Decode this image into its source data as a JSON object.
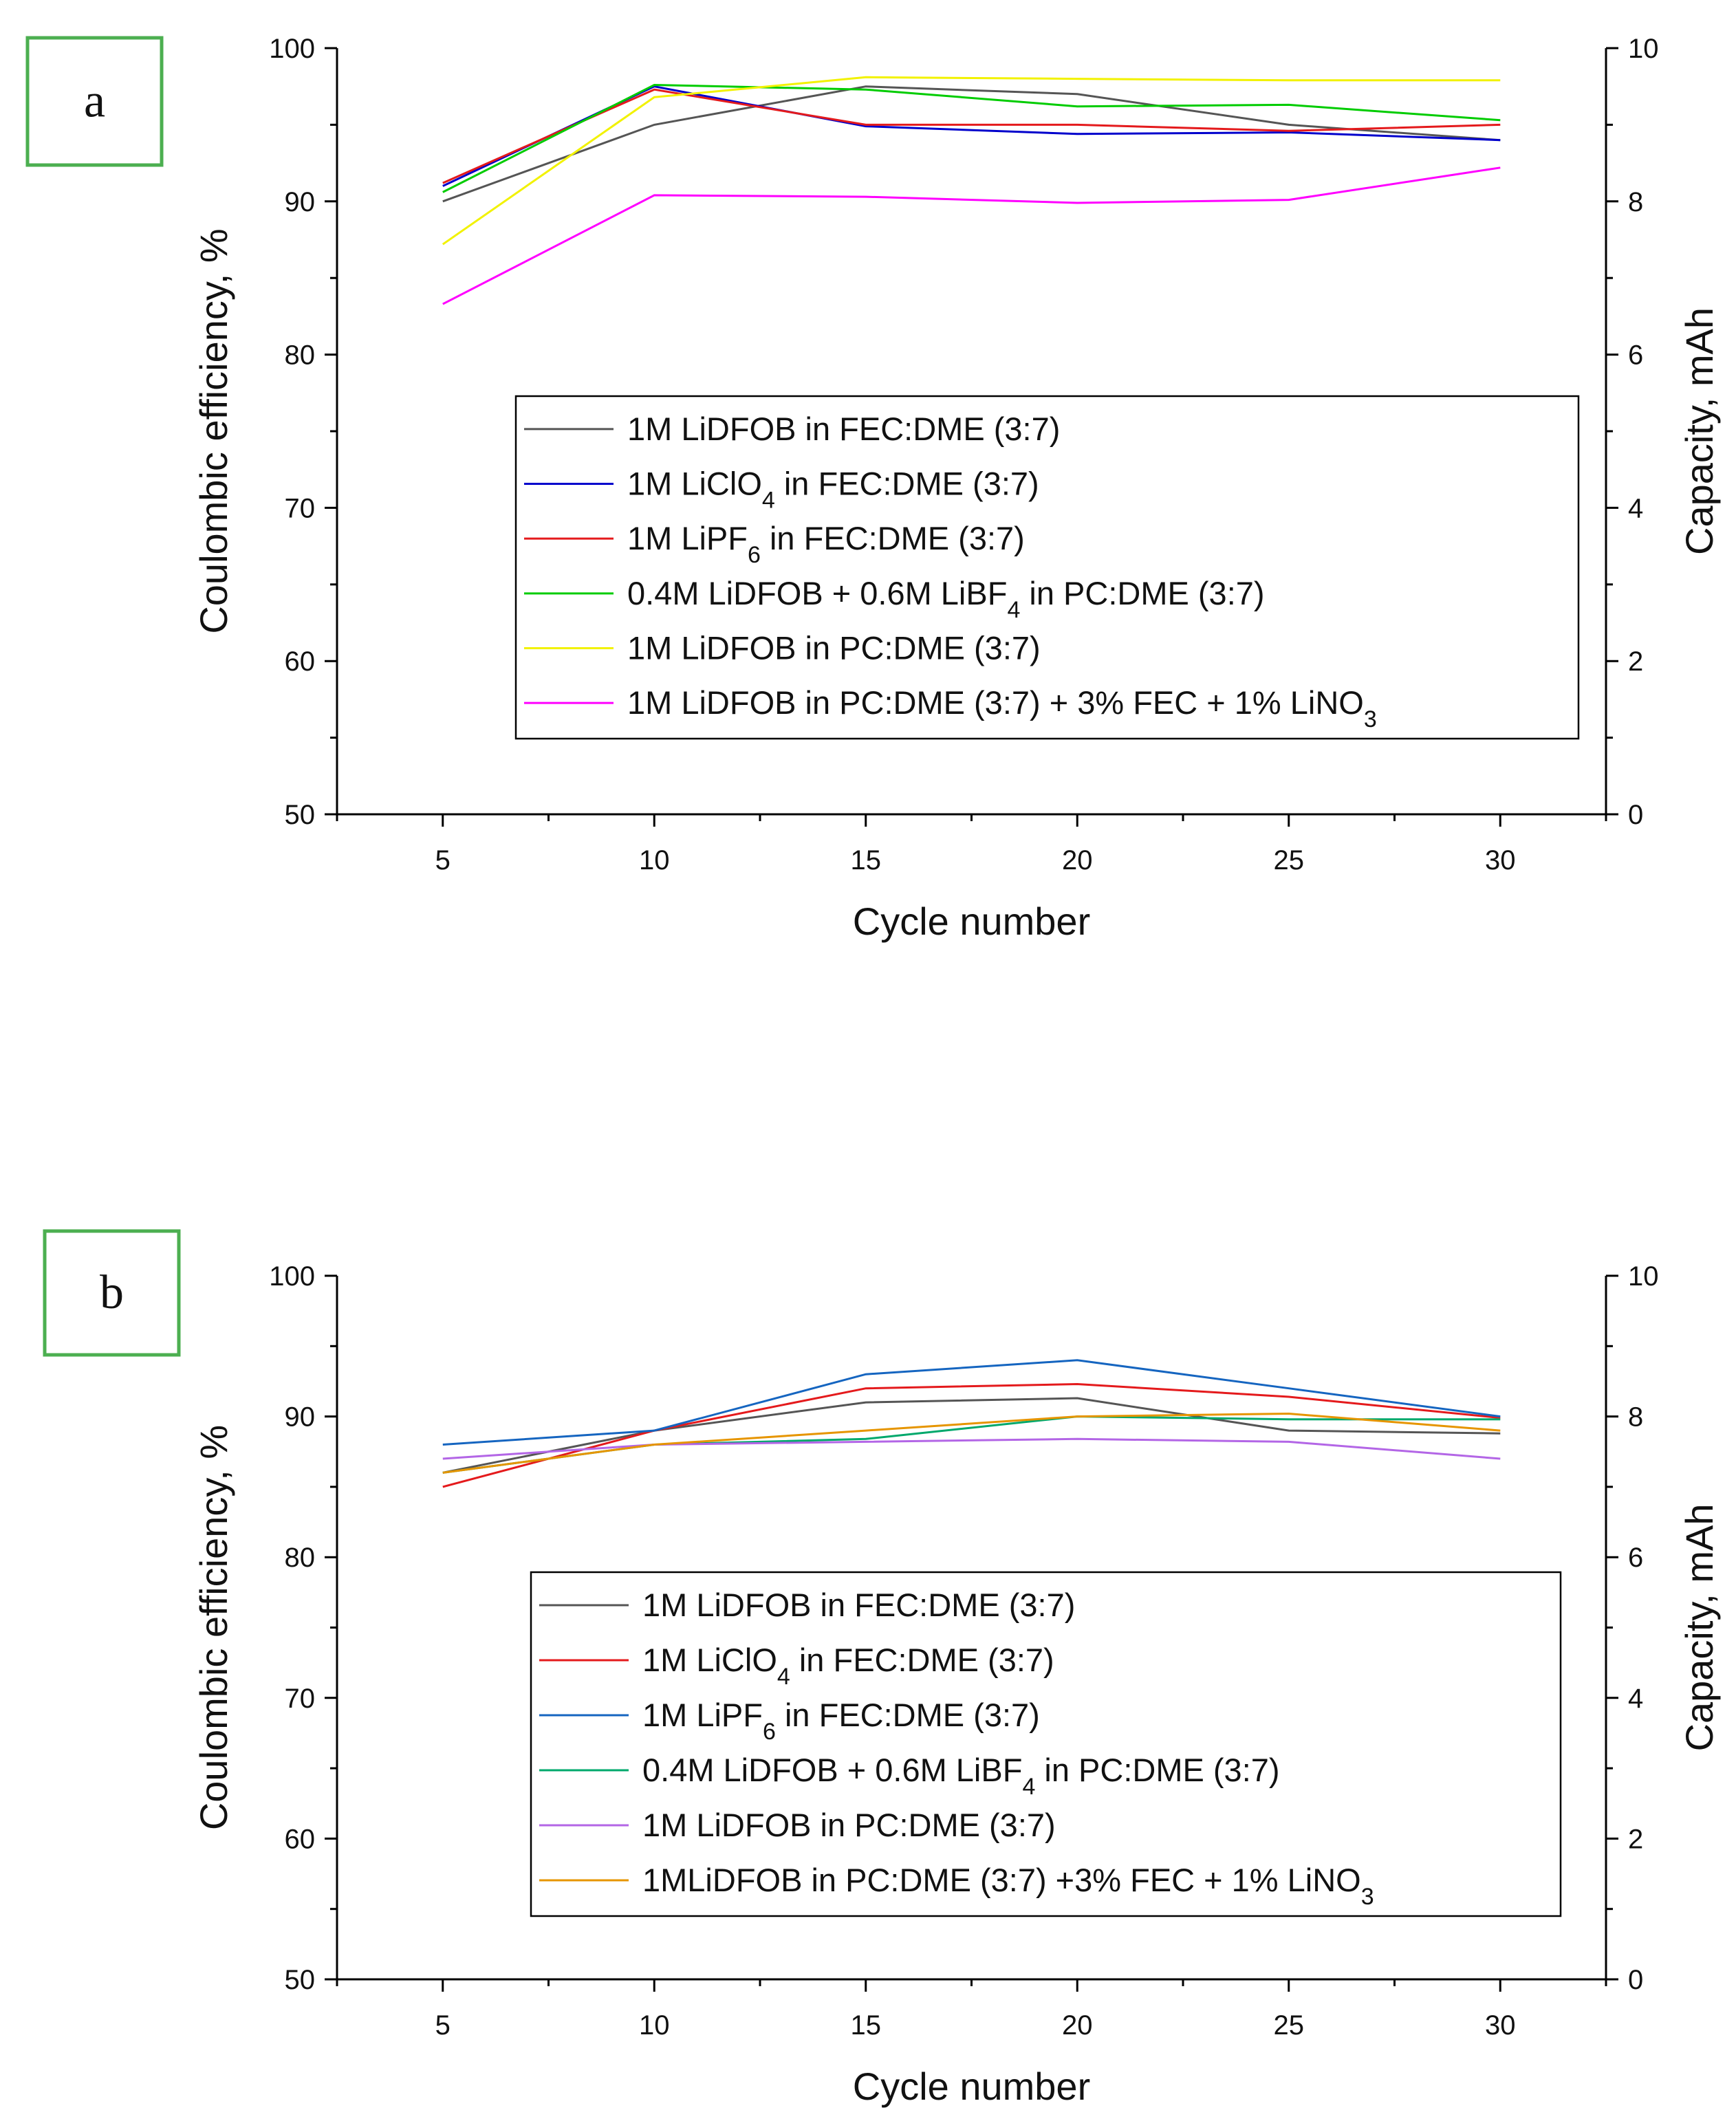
{
  "chart_data": [
    {
      "type": "line",
      "panel_label": "a",
      "xlabel": "Cycle number",
      "ylabel": "Coulombic efficiency, %",
      "y2label": "Capacity, mAh",
      "xlim": [
        2.5,
        32.5
      ],
      "ylim": [
        50,
        100
      ],
      "y2lim": [
        0,
        10
      ],
      "x_ticks": [
        5,
        10,
        15,
        20,
        25,
        30
      ],
      "y_ticks": [
        50,
        60,
        70,
        80,
        90,
        100
      ],
      "y2_ticks": [
        0,
        2,
        4,
        6,
        8,
        10
      ],
      "x": [
        5,
        10,
        15,
        20,
        25,
        30
      ],
      "legend_position": "center-right",
      "series": [
        {
          "name": "1M LiDFOB in FEC:DME (3:7)",
          "color": "#555555",
          "values": [
            90.0,
            95.0,
            97.5,
            97.0,
            95.0,
            94.0
          ],
          "legend_parts": [
            {
              "t": "1M LiDFOB in FEC:DME (3:7)"
            }
          ]
        },
        {
          "name": "1M LiClO4 in FEC:DME (3:7)",
          "color": "#0000cc",
          "values": [
            91.0,
            97.5,
            94.9,
            94.4,
            94.5,
            94.0
          ],
          "legend_parts": [
            {
              "t": "1M LiClO"
            },
            {
              "sub": "4"
            },
            {
              "t": " in FEC:DME (3:7)"
            }
          ]
        },
        {
          "name": "1M LiPF6 in FEC:DME (3:7)",
          "color": "#e41a1c",
          "values": [
            91.2,
            97.3,
            95.0,
            95.0,
            94.6,
            95.0
          ],
          "legend_parts": [
            {
              "t": "1M LiPF"
            },
            {
              "sub": "6"
            },
            {
              "t": " in FEC:DME (3:7)"
            }
          ]
        },
        {
          "name": "0.4M LiDFOB + 0.6M LiBF4 in PC:DME (3:7)",
          "color": "#00cc00",
          "values": [
            90.6,
            97.6,
            97.3,
            96.2,
            96.3,
            95.3
          ],
          "legend_parts": [
            {
              "t": "0.4M LiDFOB + 0.6M LiBF"
            },
            {
              "sub": "4"
            },
            {
              "t": " in PC:DME (3:7)"
            }
          ]
        },
        {
          "name": "1M LiDFOB in PC:DME (3:7)",
          "color": "#f2f200",
          "values": [
            87.2,
            96.8,
            98.1,
            98.0,
            97.9,
            97.9
          ],
          "legend_parts": [
            {
              "t": "1M LiDFOB in PC:DME (3:7)"
            }
          ]
        },
        {
          "name": "1M LiDFOB in PC:DME (3:7) + 3% FEC + 1% LiNO3",
          "color": "#ff00ff",
          "values": [
            83.3,
            90.4,
            90.3,
            89.9,
            90.1,
            92.2
          ],
          "legend_parts": [
            {
              "t": "1M LiDFOB in PC:DME (3:7) + 3% FEC + 1% LiNO"
            },
            {
              "sub": "3"
            }
          ]
        }
      ]
    },
    {
      "type": "line",
      "panel_label": "b",
      "xlabel": "Cycle number",
      "ylabel": "Coulombic efficiency, %",
      "y2label": "Capacity, mAh",
      "xlim": [
        2.5,
        32.5
      ],
      "ylim": [
        50,
        100
      ],
      "y2lim": [
        0,
        10
      ],
      "x_ticks": [
        5,
        10,
        15,
        20,
        25,
        30
      ],
      "y_ticks": [
        50,
        60,
        70,
        80,
        90,
        100
      ],
      "y2_ticks": [
        0,
        2,
        4,
        6,
        8,
        10
      ],
      "x": [
        5,
        10,
        15,
        20,
        25,
        30
      ],
      "legend_position": "center-right",
      "series": [
        {
          "name": "1M LiDFOB in FEC:DME (3:7)",
          "color": "#555555",
          "values": [
            86.0,
            89.0,
            91.0,
            91.3,
            89.0,
            88.8
          ],
          "legend_parts": [
            {
              "t": "1M LiDFOB in FEC:DME (3:7)"
            }
          ]
        },
        {
          "name": "1M LiClO4 in FEC:DME (3:7)",
          "color": "#e41a1c",
          "values": [
            85.0,
            89.0,
            92.0,
            92.3,
            91.4,
            89.9
          ],
          "legend_parts": [
            {
              "t": "1M LiClO"
            },
            {
              "sub": "4"
            },
            {
              "t": " in FEC:DME (3:7)"
            }
          ]
        },
        {
          "name": "1M LiPF6 in FEC:DME (3:7)",
          "color": "#1565c0",
          "values": [
            88.0,
            89.0,
            93.0,
            94.0,
            92.0,
            90.0
          ],
          "legend_parts": [
            {
              "t": "1M LiPF"
            },
            {
              "sub": "6"
            },
            {
              "t": " in FEC:DME (3:7)"
            }
          ]
        },
        {
          "name": "0.4M LiDFOB + 0.6M LiBF4 in PC:DME (3:7)",
          "color": "#00a86b",
          "values": [
            86.0,
            88.0,
            88.4,
            90.0,
            89.8,
            89.8
          ],
          "legend_parts": [
            {
              "t": "0.4M LiDFOB + 0.6M LiBF"
            },
            {
              "sub": "4"
            },
            {
              "t": " in PC:DME (3:7)"
            }
          ]
        },
        {
          "name": "1M LiDFOB in PC:DME (3:7)",
          "color": "#b366e6",
          "values": [
            87.0,
            88.0,
            88.2,
            88.4,
            88.2,
            87.0
          ],
          "legend_parts": [
            {
              "t": "1M LiDFOB in PC:DME (3:7)"
            }
          ]
        },
        {
          "name": "1MLiDFOB in PC:DME (3:7) +3% FEC + 1% LiNO3",
          "color": "#e69500",
          "values": [
            86.0,
            88.0,
            89.0,
            90.0,
            90.2,
            89.0
          ],
          "legend_parts": [
            {
              "t": "1MLiDFOB in PC:DME (3:7) +3% FEC + 1% LiNO"
            },
            {
              "sub": "3"
            }
          ]
        }
      ]
    }
  ]
}
